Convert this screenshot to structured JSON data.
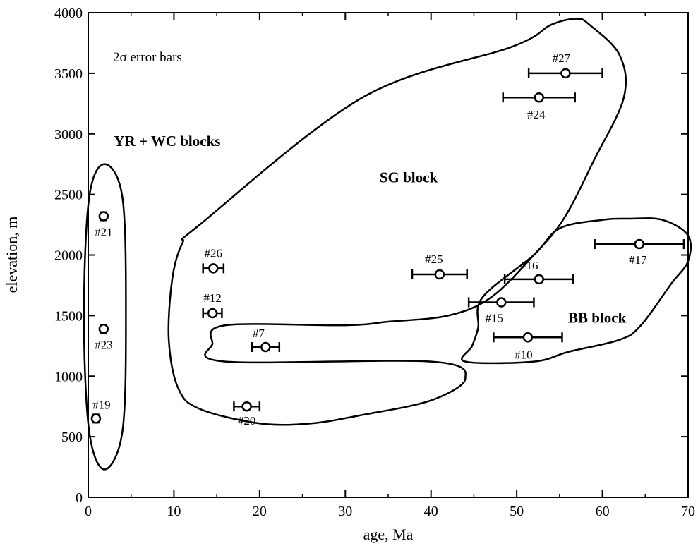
{
  "chart_data": {
    "type": "scatter",
    "xlabel": "age, Ma",
    "ylabel": "elevation, m",
    "xlim": [
      0,
      70
    ],
    "ylim": [
      0,
      4000
    ],
    "x_ticks": [
      0,
      10,
      20,
      30,
      40,
      50,
      60,
      70
    ],
    "y_ticks": [
      0,
      500,
      1000,
      1500,
      2000,
      2500,
      3000,
      3500,
      4000
    ],
    "grid": false,
    "annotation": "2σ error bars",
    "points": [
      {
        "label": "#21",
        "x": 1.8,
        "y": 2320,
        "xerr": 0.3
      },
      {
        "label": "#23",
        "x": 1.8,
        "y": 1390,
        "xerr": 0.3
      },
      {
        "label": "#19",
        "x": 0.9,
        "y": 650,
        "xerr": 0.3
      },
      {
        "label": "#26",
        "x": 14.6,
        "y": 1890,
        "xerr": 1.2
      },
      {
        "label": "#12",
        "x": 14.5,
        "y": 1520,
        "xerr": 1.1
      },
      {
        "label": "#7",
        "x": 20.7,
        "y": 1240,
        "xerr": 1.6
      },
      {
        "label": "#20",
        "x": 18.5,
        "y": 750,
        "xerr": 1.5
      },
      {
        "label": "#25",
        "x": 41.0,
        "y": 1840,
        "xerr": 3.2
      },
      {
        "label": "#27",
        "x": 55.7,
        "y": 3500,
        "xerr": 4.3
      },
      {
        "label": "#24",
        "x": 52.6,
        "y": 3300,
        "xerr": 4.2
      },
      {
        "label": "#16",
        "x": 52.6,
        "y": 1800,
        "xerr": 4.0
      },
      {
        "label": "#15",
        "x": 48.2,
        "y": 1610,
        "xerr": 3.8
      },
      {
        "label": "#10",
        "x": 51.3,
        "y": 1320,
        "xerr": 4.0
      },
      {
        "label": "#17",
        "x": 64.3,
        "y": 2090,
        "xerr": 5.2
      }
    ],
    "groups": [
      {
        "name": "YR + WC blocks",
        "label_x": 3,
        "label_y": 2900
      },
      {
        "name": "SG block",
        "label_x": 34,
        "label_y": 2600
      },
      {
        "name": "BB block",
        "label_x": 56,
        "label_y": 1440
      }
    ],
    "group_outlines": [
      {
        "group": "YR + WC blocks",
        "path": [
          [
            1.9,
            2750
          ],
          [
            4.0,
            2470
          ],
          [
            4.4,
            1500
          ],
          [
            4.0,
            550
          ],
          [
            1.9,
            230
          ],
          [
            0.1,
            550
          ],
          [
            -0.5,
            1500
          ],
          [
            0.1,
            2470
          ]
        ]
      },
      {
        "group": "SG block",
        "path": [
          [
            13,
            2250
          ],
          [
            32,
            3300
          ],
          [
            49.5,
            3720
          ],
          [
            54,
            3900
          ],
          [
            57,
            3950
          ],
          [
            58.5,
            3900
          ],
          [
            62,
            3650
          ],
          [
            62.5,
            3300
          ],
          [
            59,
            2780
          ],
          [
            55.5,
            2300
          ],
          [
            52,
            2000
          ],
          [
            47,
            1650
          ],
          [
            42,
            1500
          ],
          [
            35,
            1450
          ],
          [
            30,
            1420
          ],
          [
            16,
            1420
          ],
          [
            14.5,
            1270
          ],
          [
            16,
            1120
          ],
          [
            40,
            1120
          ],
          [
            44,
            980
          ],
          [
            40,
            800
          ],
          [
            32,
            680
          ],
          [
            26,
            610
          ],
          [
            20,
            610
          ],
          [
            13,
            730
          ],
          [
            10.5,
            900
          ],
          [
            9.4,
            1300
          ],
          [
            9.8,
            1800
          ],
          [
            11,
            2100
          ]
        ]
      },
      {
        "group": "BB block",
        "path": [
          [
            46,
            1650
          ],
          [
            52,
            2000
          ],
          [
            55,
            2220
          ],
          [
            60,
            2290
          ],
          [
            63,
            2300
          ],
          [
            67,
            2290
          ],
          [
            70,
            2160
          ],
          [
            70,
            1950
          ],
          [
            68,
            1760
          ],
          [
            64.5,
            1420
          ],
          [
            62,
            1300
          ],
          [
            56,
            1200
          ],
          [
            52,
            1120
          ],
          [
            44,
            1120
          ],
          [
            44.8,
            1250
          ],
          [
            45.5,
            1400
          ]
        ]
      }
    ]
  }
}
